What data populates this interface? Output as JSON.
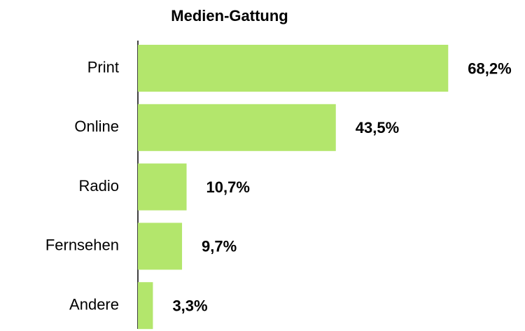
{
  "chart_data": {
    "type": "bar",
    "orientation": "horizontal",
    "title": "Medien-Gattung",
    "categories": [
      "Print",
      "Online",
      "Radio",
      "Fernsehen",
      "Andere"
    ],
    "values": [
      68.2,
      43.5,
      10.7,
      9.7,
      3.3
    ],
    "value_labels": [
      "68,2%",
      "43,5%",
      "10,7%",
      "9,7%",
      "3,3%"
    ],
    "color": "#b3e66c"
  }
}
